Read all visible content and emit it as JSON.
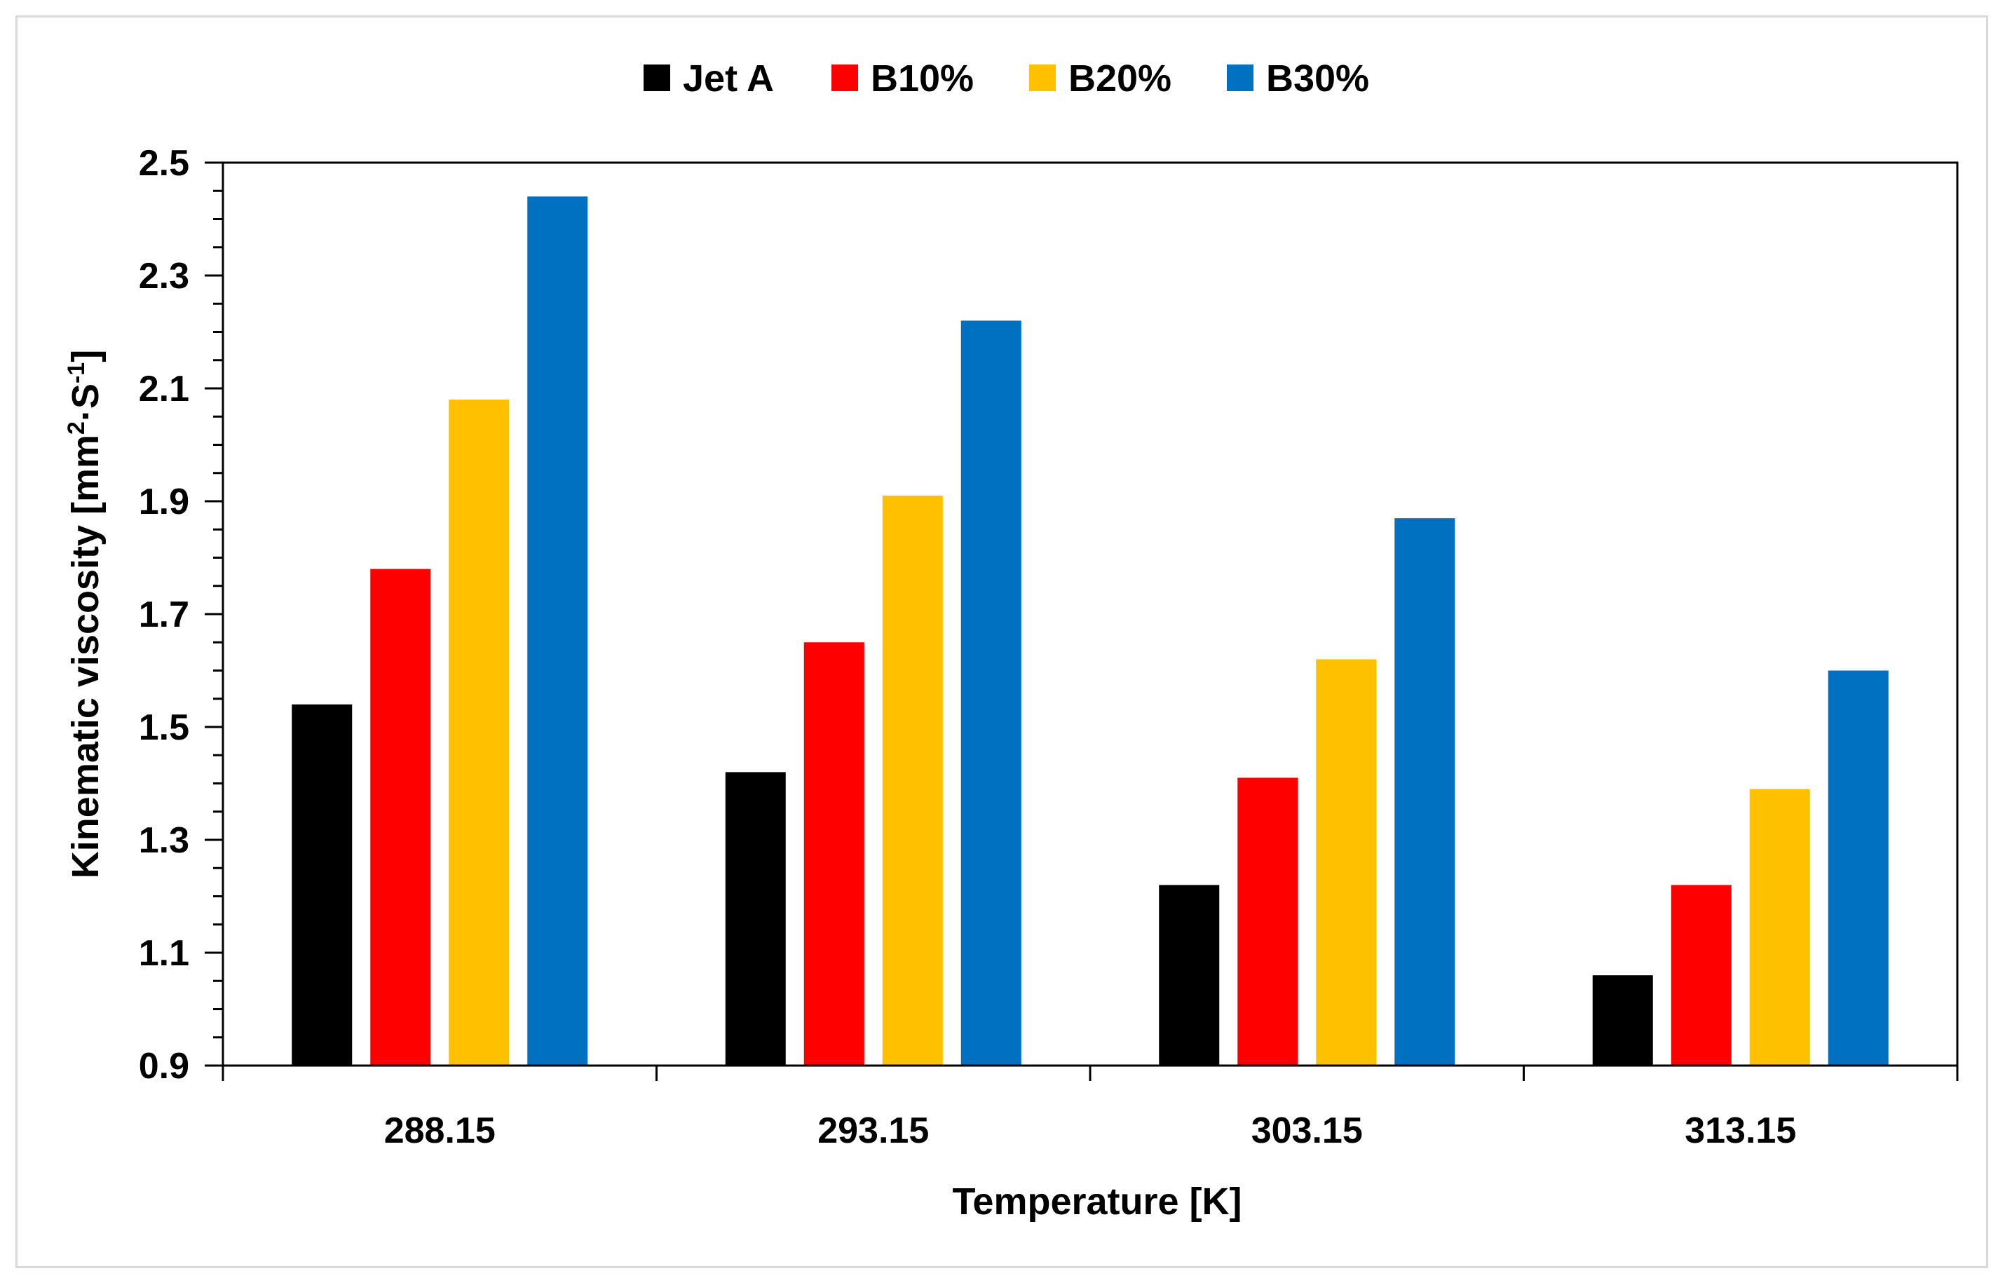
{
  "chart_data": {
    "type": "bar",
    "title": "",
    "xlabel": "Temperature [K]",
    "ylabel": {
      "main": "Kinematic viscosity [mm",
      "sup1": "2",
      "mid": "·S",
      "sup2": "-1",
      "end": "]"
    },
    "categories": [
      "288.15",
      "293.15",
      "303.15",
      "313.15"
    ],
    "series": [
      {
        "name": "Jet A",
        "color": "#000000",
        "values": [
          1.54,
          1.42,
          1.22,
          1.06
        ]
      },
      {
        "name": "B10%",
        "color": "#ff0000",
        "values": [
          1.78,
          1.65,
          1.41,
          1.22
        ]
      },
      {
        "name": "B20%",
        "color": "#ffc000",
        "values": [
          2.08,
          1.91,
          1.62,
          1.39
        ]
      },
      {
        "name": "B30%",
        "color": "#0070c0",
        "values": [
          2.44,
          2.22,
          1.87,
          1.6
        ]
      }
    ],
    "ylim": [
      0.9,
      2.5
    ],
    "yticks": [
      "0.9",
      "1.1",
      "1.3",
      "1.5",
      "1.7",
      "1.9",
      "2.1",
      "2.3",
      "2.5"
    ],
    "grid": false,
    "legend_position": "top-center"
  }
}
